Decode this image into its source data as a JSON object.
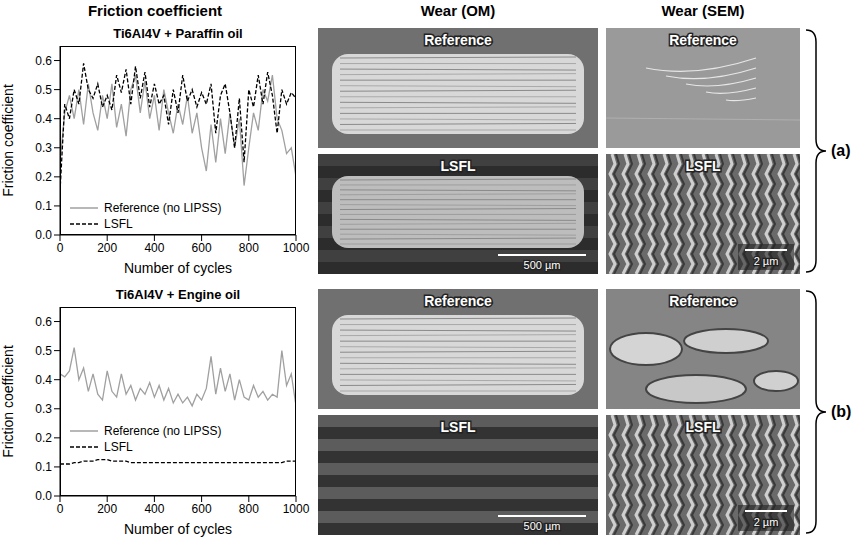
{
  "columns": [
    "Friction coefficient",
    "Wear (OM)",
    "Wear (SEM)"
  ],
  "panels": [
    {
      "letter": "(a)",
      "om": [
        {
          "label": "Reference"
        },
        {
          "label": "LSFL",
          "scale_bar": "500 µm"
        }
      ],
      "sem": [
        {
          "label": "Reference"
        },
        {
          "label": "LSFL",
          "scale_bar": "2 µm"
        }
      ]
    },
    {
      "letter": "(b)",
      "om": [
        {
          "label": "Reference"
        },
        {
          "label": "LSFL",
          "scale_bar": "500 µm"
        }
      ],
      "sem": [
        {
          "label": "Reference"
        },
        {
          "label": "LSFL",
          "scale_bar": "2 µm"
        }
      ]
    }
  ],
  "chart_data": [
    {
      "type": "line",
      "title": "Ti6Al4V + Paraffin oil",
      "xlabel": "Number of cycles",
      "ylabel": "Friction coefficient",
      "x": [
        0,
        20,
        40,
        60,
        80,
        100,
        120,
        140,
        160,
        180,
        200,
        220,
        240,
        260,
        280,
        300,
        320,
        340,
        360,
        380,
        400,
        420,
        440,
        460,
        480,
        500,
        520,
        540,
        560,
        580,
        600,
        620,
        640,
        660,
        680,
        700,
        720,
        740,
        760,
        780,
        800,
        820,
        840,
        860,
        880,
        900,
        920,
        940,
        960,
        980,
        1000
      ],
      "xlim": [
        0,
        1000
      ],
      "xticks": [
        0,
        200,
        400,
        600,
        800,
        1000
      ],
      "ylim": [
        0,
        0.65
      ],
      "yticks": [
        {
          "value": 0,
          "label": "0.0"
        },
        0.1,
        0.2,
        0.3,
        0.4,
        0.5,
        0.6
      ],
      "legend": "lower left",
      "series": [
        {
          "name": "Reference (no LIPSS)",
          "color": "#a0a0a0",
          "line_style": "solid",
          "values": [
            0.25,
            0.42,
            0.48,
            0.4,
            0.5,
            0.38,
            0.52,
            0.42,
            0.36,
            0.48,
            0.4,
            0.52,
            0.37,
            0.45,
            0.34,
            0.5,
            0.55,
            0.42,
            0.53,
            0.4,
            0.48,
            0.36,
            0.5,
            0.42,
            0.35,
            0.45,
            0.38,
            0.48,
            0.35,
            0.42,
            0.3,
            0.22,
            0.38,
            0.25,
            0.4,
            0.28,
            0.42,
            0.3,
            0.4,
            0.17,
            0.3,
            0.42,
            0.36,
            0.5,
            0.46,
            0.55,
            0.4,
            0.36,
            0.28,
            0.3,
            0.2
          ]
        },
        {
          "name": "LSFL",
          "color": "#000000",
          "line_style": "dashed",
          "values": [
            0.15,
            0.45,
            0.4,
            0.5,
            0.45,
            0.59,
            0.5,
            0.47,
            0.52,
            0.44,
            0.48,
            0.43,
            0.55,
            0.49,
            0.57,
            0.45,
            0.58,
            0.47,
            0.56,
            0.44,
            0.52,
            0.45,
            0.48,
            0.38,
            0.5,
            0.42,
            0.55,
            0.46,
            0.5,
            0.44,
            0.49,
            0.45,
            0.52,
            0.35,
            0.48,
            0.52,
            0.42,
            0.3,
            0.47,
            0.25,
            0.5,
            0.44,
            0.55,
            0.45,
            0.56,
            0.48,
            0.35,
            0.5,
            0.45,
            0.49,
            0.47
          ]
        }
      ]
    },
    {
      "type": "line",
      "title": "Ti6Al4V + Engine oil",
      "xlabel": "Number of cycles",
      "ylabel": "Friction coefficient",
      "x": [
        0,
        20,
        40,
        60,
        80,
        100,
        120,
        140,
        160,
        180,
        200,
        220,
        240,
        260,
        280,
        300,
        320,
        340,
        360,
        380,
        400,
        420,
        440,
        460,
        480,
        500,
        520,
        540,
        560,
        580,
        600,
        620,
        640,
        660,
        680,
        700,
        720,
        740,
        760,
        780,
        800,
        820,
        840,
        860,
        880,
        900,
        920,
        940,
        960,
        980,
        1000
      ],
      "xlim": [
        0,
        1000
      ],
      "xticks": [
        0,
        200,
        400,
        600,
        800,
        1000
      ],
      "ylim": [
        0,
        0.65
      ],
      "yticks": [
        {
          "value": 0,
          "label": "0.0"
        },
        0.1,
        0.2,
        0.3,
        0.4,
        0.5,
        0.6
      ],
      "legend": "lower left",
      "series": [
        {
          "name": "Reference (no LIPSS)",
          "color": "#a0a0a0",
          "line_style": "solid",
          "values": [
            0.42,
            0.41,
            0.43,
            0.51,
            0.4,
            0.44,
            0.36,
            0.42,
            0.35,
            0.33,
            0.43,
            0.36,
            0.34,
            0.42,
            0.35,
            0.38,
            0.33,
            0.37,
            0.35,
            0.39,
            0.34,
            0.38,
            0.33,
            0.37,
            0.32,
            0.35,
            0.32,
            0.34,
            0.31,
            0.35,
            0.33,
            0.37,
            0.48,
            0.35,
            0.44,
            0.36,
            0.42,
            0.33,
            0.4,
            0.34,
            0.33,
            0.38,
            0.34,
            0.36,
            0.33,
            0.35,
            0.34,
            0.5,
            0.38,
            0.42,
            0.31
          ]
        },
        {
          "name": "LSFL",
          "color": "#000000",
          "line_style": "dashed",
          "values": [
            0.11,
            0.11,
            0.11,
            0.115,
            0.115,
            0.12,
            0.12,
            0.12,
            0.125,
            0.125,
            0.125,
            0.12,
            0.12,
            0.12,
            0.12,
            0.115,
            0.115,
            0.115,
            0.115,
            0.115,
            0.115,
            0.115,
            0.115,
            0.115,
            0.115,
            0.115,
            0.115,
            0.115,
            0.115,
            0.115,
            0.115,
            0.115,
            0.115,
            0.115,
            0.115,
            0.115,
            0.115,
            0.115,
            0.115,
            0.115,
            0.115,
            0.115,
            0.115,
            0.115,
            0.115,
            0.115,
            0.115,
            0.115,
            0.12,
            0.12,
            0.12
          ]
        }
      ]
    }
  ]
}
